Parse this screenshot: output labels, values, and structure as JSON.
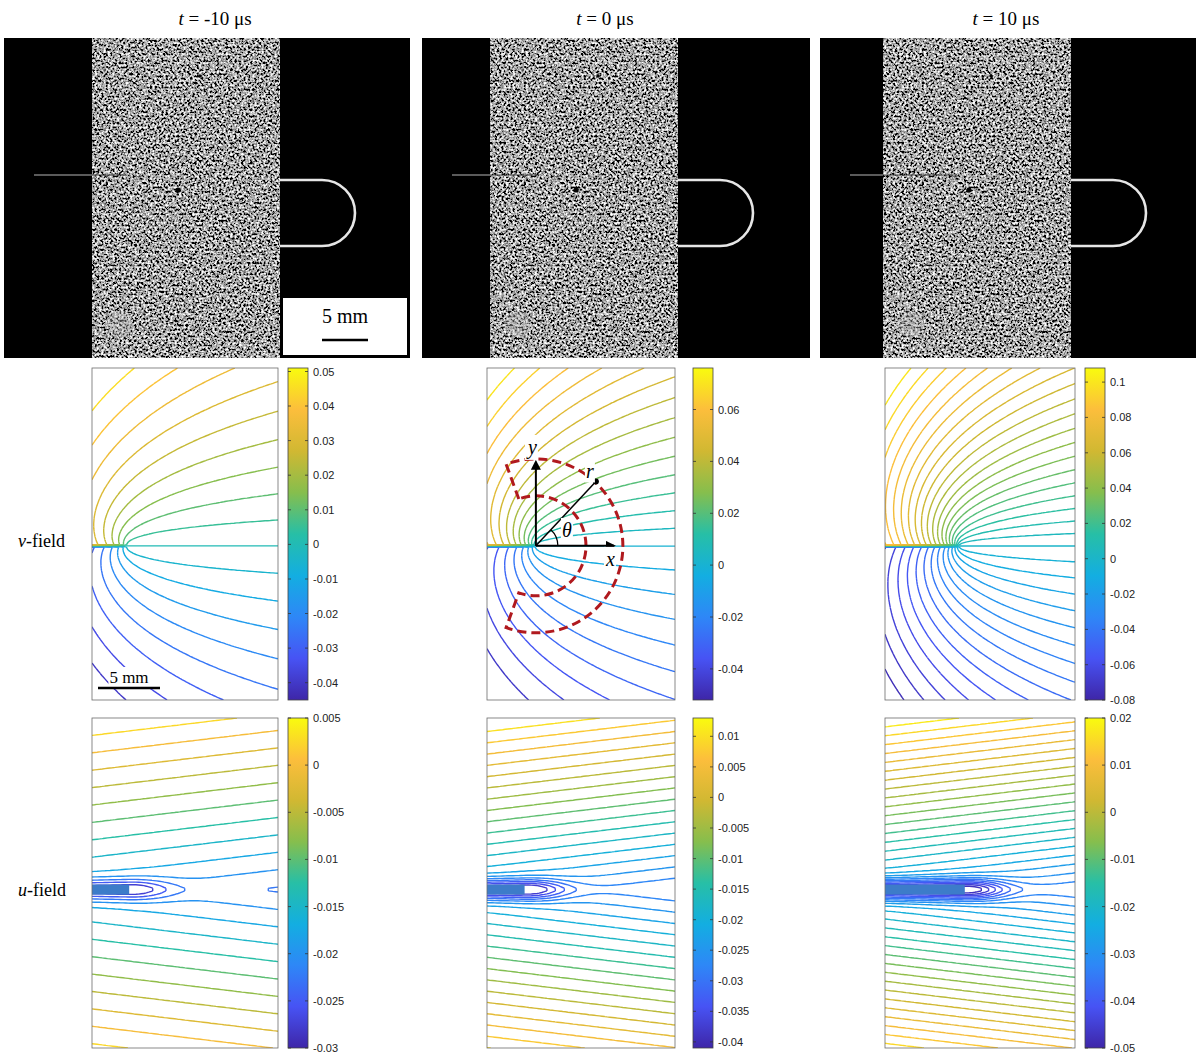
{
  "figure": {
    "titles": [
      "t = -10 μs",
      "t = 0 μs",
      "t = 10 μs"
    ],
    "row_labels": [
      "v-field",
      "u-field"
    ],
    "scale_bar_photo": "5 mm",
    "scale_bar_plot": "5 mm",
    "annotations": {
      "x": "x",
      "y": "y",
      "r": "r",
      "theta": "θ"
    }
  },
  "chart_data": [
    {
      "type": "contour",
      "levels": [
        -0.04,
        -0.035,
        -0.03,
        -0.025,
        -0.02,
        -0.015,
        -0.01,
        -0.005,
        0,
        0.005,
        0.01,
        0.015,
        0.02,
        0.025,
        0.03,
        0.035,
        0.04,
        0.045
      ],
      "colorbar_range": [
        -0.045,
        0.051
      ],
      "colorbar_ticks": [
        -0.04,
        -0.03,
        -0.02,
        -0.01,
        0,
        0.01,
        0.02,
        0.03,
        0.04,
        0.05
      ]
    },
    {
      "type": "contour",
      "levels": [
        -0.045,
        -0.04,
        -0.035,
        -0.03,
        -0.025,
        -0.02,
        -0.015,
        -0.01,
        -0.005,
        0,
        0.005,
        0.01,
        0.015,
        0.02,
        0.025,
        0.03,
        0.035,
        0.04,
        0.045,
        0.05,
        0.055,
        0.06,
        0.065,
        0.07
      ],
      "colorbar_range": [
        -0.052,
        0.076
      ],
      "colorbar_ticks": [
        -0.04,
        -0.02,
        0,
        0.02,
        0.04,
        0.06
      ]
    },
    {
      "type": "contour",
      "levels": [
        -0.075,
        -0.07,
        -0.065,
        -0.06,
        -0.055,
        -0.05,
        -0.045,
        -0.04,
        -0.035,
        -0.03,
        -0.025,
        -0.02,
        -0.015,
        -0.01,
        -0.005,
        0,
        0.005,
        0.01,
        0.015,
        0.02,
        0.025,
        0.03,
        0.035,
        0.04,
        0.045,
        0.05,
        0.055,
        0.06,
        0.065,
        0.07,
        0.075,
        0.08,
        0.085,
        0.09,
        0.095,
        0.1
      ],
      "colorbar_range": [
        -0.08,
        0.108
      ],
      "colorbar_ticks": [
        -0.08,
        -0.06,
        -0.04,
        -0.02,
        0,
        0.02,
        0.04,
        0.06,
        0.08,
        0.1
      ]
    },
    {
      "type": "contour",
      "levels": [
        -0.0275,
        -0.025,
        -0.0225,
        -0.02,
        -0.0175,
        -0.015,
        -0.0125,
        -0.01,
        -0.0075,
        -0.005,
        -0.0025,
        0,
        0.0025
      ],
      "colorbar_range": [
        -0.03,
        0.005
      ],
      "colorbar_ticks": [
        -0.03,
        -0.025,
        -0.02,
        -0.015,
        -0.01,
        -0.005,
        0,
        0.005
      ]
    },
    {
      "type": "contour",
      "levels": [
        -0.0375,
        -0.035,
        -0.0325,
        -0.03,
        -0.0275,
        -0.025,
        -0.0225,
        -0.02,
        -0.0175,
        -0.015,
        -0.0125,
        -0.01,
        -0.0075,
        -0.005,
        -0.0025,
        0,
        0.0025,
        0.005,
        0.0075,
        0.01
      ],
      "colorbar_range": [
        -0.041,
        0.013
      ],
      "colorbar_ticks": [
        -0.04,
        -0.035,
        -0.03,
        -0.025,
        -0.02,
        -0.015,
        -0.01,
        -0.005,
        0,
        0.005,
        0.01
      ]
    },
    {
      "type": "contour",
      "levels": [
        -0.0475,
        -0.045,
        -0.0425,
        -0.04,
        -0.0375,
        -0.035,
        -0.0325,
        -0.03,
        -0.0275,
        -0.025,
        -0.0225,
        -0.02,
        -0.0175,
        -0.015,
        -0.0125,
        -0.01,
        -0.0075,
        -0.005,
        -0.0025,
        0,
        0.0025,
        0.005,
        0.0075,
        0.01,
        0.0125,
        0.015,
        0.0175
      ],
      "colorbar_range": [
        -0.05,
        0.02
      ],
      "colorbar_ticks": [
        -0.05,
        -0.04,
        -0.03,
        -0.02,
        -0.01,
        0,
        0.01,
        0.02
      ]
    }
  ]
}
